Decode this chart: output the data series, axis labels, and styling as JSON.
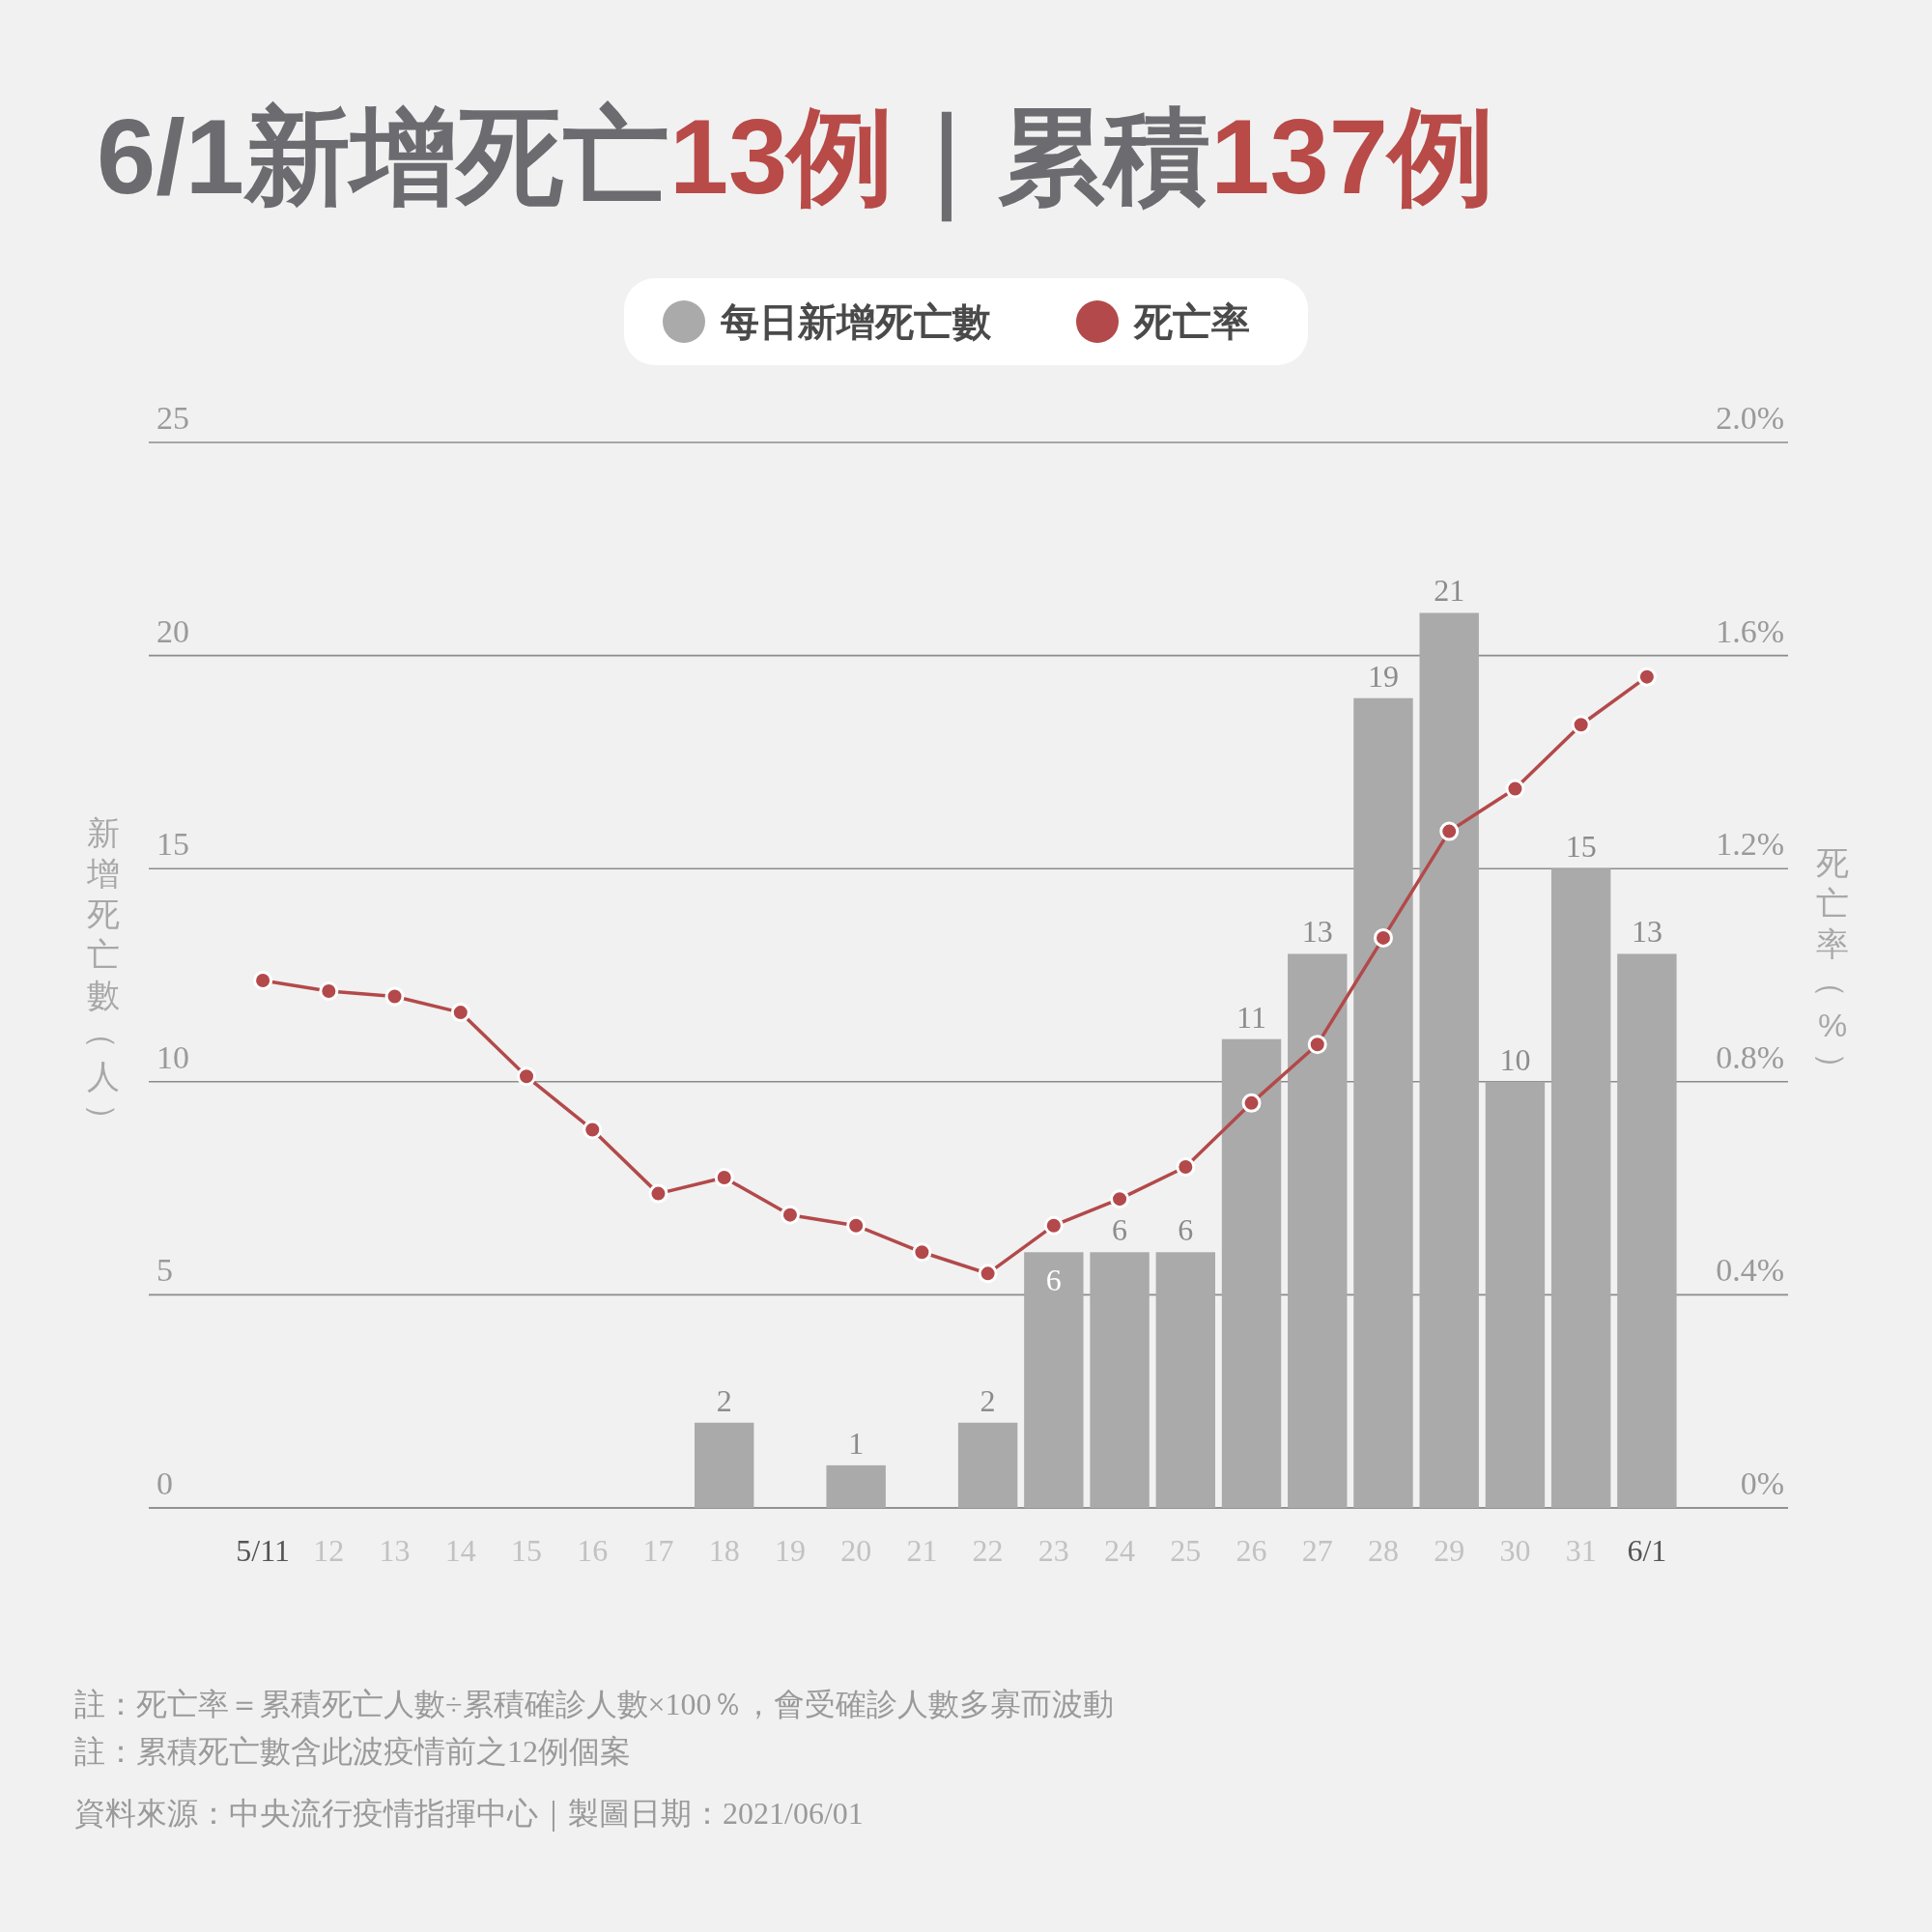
{
  "chart_data": {
    "type": "bar",
    "title": "6/1新增死亡13例｜累積137例",
    "ylabel": "新增死亡數（人）",
    "y2label": "死亡率（%）",
    "categories": [
      "5/11",
      "12",
      "13",
      "14",
      "15",
      "16",
      "17",
      "18",
      "19",
      "20",
      "21",
      "22",
      "23",
      "24",
      "25",
      "26",
      "27",
      "28",
      "29",
      "30",
      "31",
      "6/1"
    ],
    "series": [
      {
        "name": "每日新增死亡數",
        "color": "#aaaaaa",
        "values": [
          0,
          0,
          0,
          0,
          0,
          0,
          0,
          2,
          0,
          1,
          0,
          2,
          6,
          6,
          6,
          11,
          13,
          19,
          21,
          10,
          15,
          13
        ],
        "value_labels": [
          null,
          null,
          null,
          null,
          null,
          null,
          null,
          "2",
          null,
          "1",
          null,
          "2",
          "6",
          "6",
          "6",
          "11",
          "13",
          "19",
          "21",
          "10",
          "15",
          "13"
        ]
      },
      {
        "name": "死亡率",
        "type": "line",
        "axis": "y2",
        "color": "#b3494a",
        "values": [
          0.99,
          0.97,
          0.96,
          0.93,
          0.81,
          0.71,
          0.59,
          0.62,
          0.55,
          0.53,
          0.48,
          0.44,
          0.53,
          0.58,
          0.64,
          0.76,
          0.87,
          1.07,
          1.27,
          1.35,
          1.47,
          1.56
        ]
      }
    ],
    "ylim": [
      0,
      25
    ],
    "yticks": [
      0,
      5,
      10,
      15,
      20,
      25
    ],
    "y2lim": [
      0,
      2.0
    ],
    "y2ticks": [
      {
        "value": 0,
        "label": "0%"
      },
      {
        "value": 0.4,
        "label": "0.4%"
      },
      {
        "value": 0.8,
        "label": "0.8%"
      },
      {
        "value": 1.2,
        "label": "1.2%"
      },
      {
        "value": 1.6,
        "label": "1.6%"
      },
      {
        "value": 2.0,
        "label": "2.0%"
      }
    ],
    "grid": "y",
    "legend": "top",
    "marker": "circle",
    "line_style": "solid",
    "annotations": [
      "註：死亡率＝累積死亡人數÷累積確診人數×100％，會受確診人數多寡而波動",
      "註：累積死亡數含此波疫情前之12例個案",
      "資料來源：中央流行疫情指揮中心｜製圖日期：2021/06/01"
    ]
  }
}
